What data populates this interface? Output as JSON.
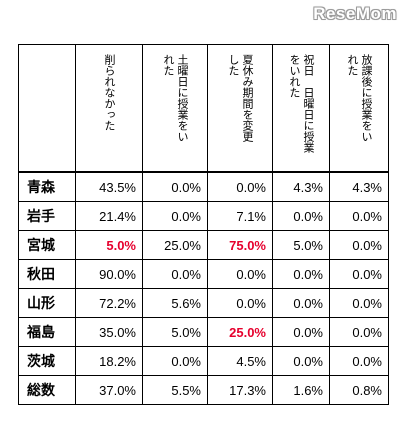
{
  "watermark": "ReseMom",
  "table": {
    "headers": [
      "",
      "削られなかった",
      "土曜日に授業をい\nれた",
      "夏休み期間を変更\nした",
      "祝日　日曜日に授業\nをいれた",
      "放課後に授業をい\nれた"
    ],
    "rows": [
      {
        "pref": "青森",
        "values": [
          "43.5%",
          "0.0%",
          "0.0%",
          "4.3%",
          "4.3%"
        ]
      },
      {
        "pref": "岩手",
        "values": [
          "21.4%",
          "0.0%",
          "7.1%",
          "0.0%",
          "0.0%"
        ]
      },
      {
        "pref": "宮城",
        "values": [
          "5.0%",
          "25.0%",
          "75.0%",
          "5.0%",
          "0.0%"
        ]
      },
      {
        "pref": "秋田",
        "values": [
          "90.0%",
          "0.0%",
          "0.0%",
          "0.0%",
          "0.0%"
        ]
      },
      {
        "pref": "山形",
        "values": [
          "72.2%",
          "5.6%",
          "0.0%",
          "0.0%",
          "0.0%"
        ]
      },
      {
        "pref": "福島",
        "values": [
          "35.0%",
          "5.0%",
          "25.0%",
          "0.0%",
          "0.0%"
        ]
      },
      {
        "pref": "茨城",
        "values": [
          "18.2%",
          "0.0%",
          "4.5%",
          "0.0%",
          "0.0%"
        ]
      },
      {
        "pref": "総数",
        "values": [
          "37.0%",
          "5.5%",
          "17.3%",
          "1.6%",
          "0.8%"
        ]
      }
    ],
    "highlight_color": "#e6002d",
    "highlighted_cells": [
      "宮城:削られなかった",
      "宮城:夏休み期間を変更した",
      "福島:夏休み期間を変更した"
    ]
  }
}
